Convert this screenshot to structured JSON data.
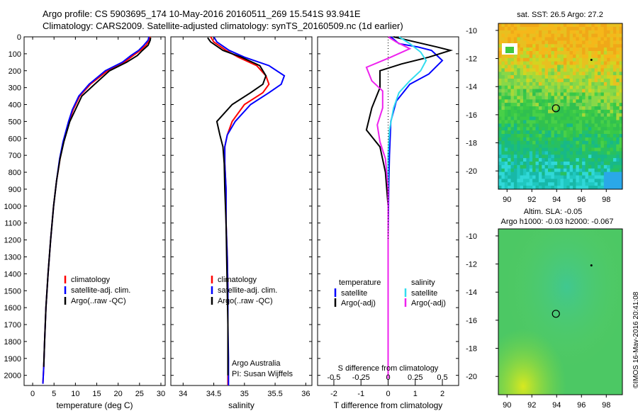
{
  "titles": {
    "line1": "Argo profile: CS 5903695_174 10-May-2016 20160511_269 15.541S 93.941E",
    "line2": "Climatology: CARS2009. Satellite-adjusted climatology: synTS_20160509.nc (1d earlier)"
  },
  "stamp": "©IMOS 16-May-2016 20:41:08",
  "colors": {
    "climatology": "#ff0000",
    "satellite": "#0000ff",
    "argo": "#000000",
    "sal_satellite": "#33ddee",
    "sal_argo": "#ee22ee"
  },
  "chart_data": [
    {
      "type": "line",
      "id": "temperature",
      "xlabel": "temperature (deg C)",
      "ylabel": "",
      "xlim": [
        -2,
        31
      ],
      "ylim": [
        2060,
        0
      ],
      "xticks": [
        0,
        5,
        10,
        15,
        20,
        25,
        30
      ],
      "yticks": [
        0,
        100,
        200,
        300,
        400,
        500,
        600,
        700,
        800,
        900,
        1000,
        1100,
        1200,
        1300,
        1400,
        1500,
        1600,
        1700,
        1800,
        1900,
        2000
      ],
      "legend": [
        "climatology",
        "satellite-adj. clim.",
        "Argo(..raw -QC)"
      ],
      "series": [
        {
          "name": "climatology",
          "color": "#ff0000",
          "x": [
            27.5,
            27.3,
            26.5,
            25.2,
            23.5,
            21.5,
            17.5,
            13.5,
            11,
            9.5,
            8.5,
            7.2,
            6.4,
            5.6,
            4.9,
            4.2,
            3.6,
            3.1,
            2.8,
            2.6,
            2.4
          ],
          "y": [
            0,
            20,
            50,
            80,
            110,
            150,
            200,
            280,
            350,
            430,
            500,
            620,
            720,
            850,
            1000,
            1200,
            1400,
            1600,
            1800,
            1950,
            2050
          ]
        },
        {
          "name": "satellite-adj. clim.",
          "color": "#0000ff",
          "x": [
            27.2,
            27.0,
            26.0,
            24.8,
            23,
            21,
            17,
            13.2,
            10.8,
            9.3,
            8.4,
            7.1,
            6.3,
            5.6,
            4.9,
            4.2,
            3.6,
            3.1,
            2.8,
            2.6,
            2.4
          ],
          "y": [
            0,
            20,
            50,
            80,
            110,
            150,
            200,
            280,
            350,
            430,
            500,
            620,
            720,
            850,
            1000,
            1200,
            1400,
            1600,
            1800,
            1950,
            2050
          ]
        },
        {
          "name": "Argo(..raw -QC)",
          "color": "#000000",
          "x": [
            27.6,
            27.5,
            27.0,
            25.7,
            24.5,
            22,
            18,
            14.5,
            11.5,
            10,
            8.7,
            7.3,
            6.4,
            5.6,
            4.9,
            4.2,
            3.6,
            3.1,
            2.8,
            2.6
          ],
          "y": [
            5,
            20,
            50,
            80,
            110,
            150,
            200,
            280,
            350,
            430,
            500,
            620,
            720,
            850,
            1000,
            1200,
            1400,
            1600,
            1800,
            1950
          ]
        }
      ]
    },
    {
      "type": "line",
      "id": "salinity",
      "xlabel": "salinity",
      "xlim": [
        33.8,
        36.1
      ],
      "ylim": [
        2060,
        0
      ],
      "xticks": [
        34,
        34.5,
        35,
        35.5,
        36
      ],
      "legend": [
        "climatology",
        "satellite-adj. clim.",
        "Argo(..raw -QC)"
      ],
      "annotation": [
        "Argo Australia",
        "PI: Susan Wijffels"
      ],
      "series": [
        {
          "name": "climatology",
          "color": "#ff0000",
          "x": [
            34.45,
            34.5,
            34.7,
            34.9,
            35.2,
            35.35,
            35.4,
            35.3,
            35.0,
            34.8,
            34.72,
            34.68,
            34.68,
            34.7,
            34.7,
            34.72,
            34.73,
            34.73,
            34.73,
            34.73,
            34.73
          ],
          "y": [
            0,
            30,
            80,
            120,
            170,
            230,
            280,
            330,
            400,
            500,
            580,
            650,
            750,
            900,
            1100,
            1300,
            1500,
            1700,
            1900,
            2000,
            2060
          ]
        },
        {
          "name": "satellite-adj. clim.",
          "color": "#0000ff",
          "x": [
            34.5,
            34.55,
            34.75,
            35.0,
            35.4,
            35.65,
            35.6,
            35.4,
            35.1,
            34.85,
            34.72,
            34.68,
            34.68,
            34.7,
            34.7,
            34.72,
            34.73,
            34.73,
            34.74,
            34.74,
            34.74
          ],
          "y": [
            0,
            30,
            80,
            120,
            170,
            230,
            280,
            330,
            400,
            500,
            580,
            650,
            750,
            900,
            1100,
            1300,
            1500,
            1700,
            1900,
            2000,
            2060
          ]
        },
        {
          "name": "Argo(..raw -QC)",
          "color": "#000000",
          "x": [
            34.4,
            34.45,
            34.65,
            34.95,
            35.25,
            35.35,
            35.3,
            35.1,
            34.8,
            34.55,
            34.6,
            34.65,
            34.67,
            34.68,
            34.7,
            34.71,
            34.72,
            34.73,
            34.73,
            34.73
          ],
          "y": [
            5,
            30,
            80,
            120,
            170,
            230,
            280,
            330,
            400,
            500,
            580,
            650,
            750,
            900,
            1100,
            1300,
            1500,
            1700,
            1900,
            2000
          ]
        }
      ]
    },
    {
      "type": "line",
      "id": "difference",
      "xlabel": "T difference from climatology",
      "xlabel_top": "S difference from climatology",
      "xlim": [
        -2.6,
        2.6
      ],
      "ylim": [
        2060,
        0
      ],
      "xticks_bottom": [
        "-2",
        "-1",
        "0",
        "1",
        "2"
      ],
      "xticks_top": [
        "-0.5",
        "-0.25",
        "0",
        "0.25",
        "0.5"
      ],
      "legend_temperature": {
        "title": "temperature",
        "items": [
          "satellite",
          "Argo(-adj)"
        ]
      },
      "legend_salinity": {
        "title": "salinity",
        "items": [
          "satellite",
          "Argo(-adj)"
        ]
      },
      "series": [
        {
          "name": "temperature satellite",
          "color": "#0000ff",
          "x": [
            0.1,
            0.4,
            1.1,
            1.6,
            2.0,
            1.5,
            0.8,
            0.3,
            0.1,
            0.05,
            0.02,
            0.0,
            0.0,
            0.0,
            0.0,
            0.0
          ],
          "y": [
            0,
            40,
            60,
            80,
            140,
            220,
            280,
            380,
            500,
            700,
            900,
            1200,
            1500,
            1700,
            1900,
            2020
          ]
        },
        {
          "name": "temperature Argo(-adj)",
          "color": "#000000",
          "x": [
            0.2,
            1.0,
            1.8,
            2.3,
            1.5,
            0.5,
            -0.3,
            -0.3,
            -0.6,
            -0.8,
            -0.3,
            -0.1,
            0.0,
            0.0,
            0.0,
            0.0,
            0.0
          ],
          "y": [
            0,
            30,
            60,
            80,
            120,
            160,
            200,
            300,
            420,
            550,
            650,
            800,
            1000,
            1300,
            1600,
            1900,
            2020
          ]
        },
        {
          "name": "salinity satellite",
          "color": "#33ddee",
          "x": [
            0.4,
            0.8,
            1.2,
            1.4,
            1.2,
            0.8,
            0.4,
            0.2,
            0.05,
            0.0,
            0.0,
            0.0,
            0.0,
            0.0,
            0.0
          ],
          "y": [
            0,
            40,
            90,
            140,
            200,
            260,
            330,
            420,
            550,
            700,
            900,
            1200,
            1500,
            1800,
            2020
          ]
        },
        {
          "name": "salinity Argo(-adj)",
          "color": "#ee22ee",
          "x": [
            0.0,
            0.3,
            0.8,
            0.1,
            -0.8,
            -0.6,
            -0.2,
            -0.2,
            -0.4,
            -0.3,
            -0.1,
            0.0,
            0.0,
            0.0,
            0.0
          ],
          "y": [
            0,
            30,
            70,
            120,
            180,
            260,
            320,
            420,
            520,
            620,
            720,
            900,
            1200,
            1600,
            2020
          ]
        }
      ]
    },
    {
      "type": "heatmap",
      "id": "sst_map",
      "title": "sat. SST: 26.5 Argo: 27.2",
      "xlim": [
        89.3,
        99.3
      ],
      "ylim": [
        -21.3,
        -9.5
      ],
      "xticks": [
        90,
        92,
        94,
        96,
        98
      ],
      "yticks": [
        -10,
        -12,
        -14,
        -16,
        -18,
        -20
      ],
      "marker": {
        "lon": 93.941,
        "lat": -15.541
      }
    },
    {
      "type": "heatmap",
      "id": "sla_map",
      "title": "Altim. SLA: -0.05",
      "subtitle": "Argo h1000: -0.03 h2000: -0.067",
      "xlim": [
        89.3,
        99.3
      ],
      "ylim": [
        -21.3,
        -9.5
      ],
      "xticks": [
        90,
        92,
        94,
        96,
        98
      ],
      "yticks": [
        -10,
        -12,
        -14,
        -16,
        -18,
        -20
      ],
      "marker": {
        "lon": 93.941,
        "lat": -15.541
      }
    }
  ]
}
